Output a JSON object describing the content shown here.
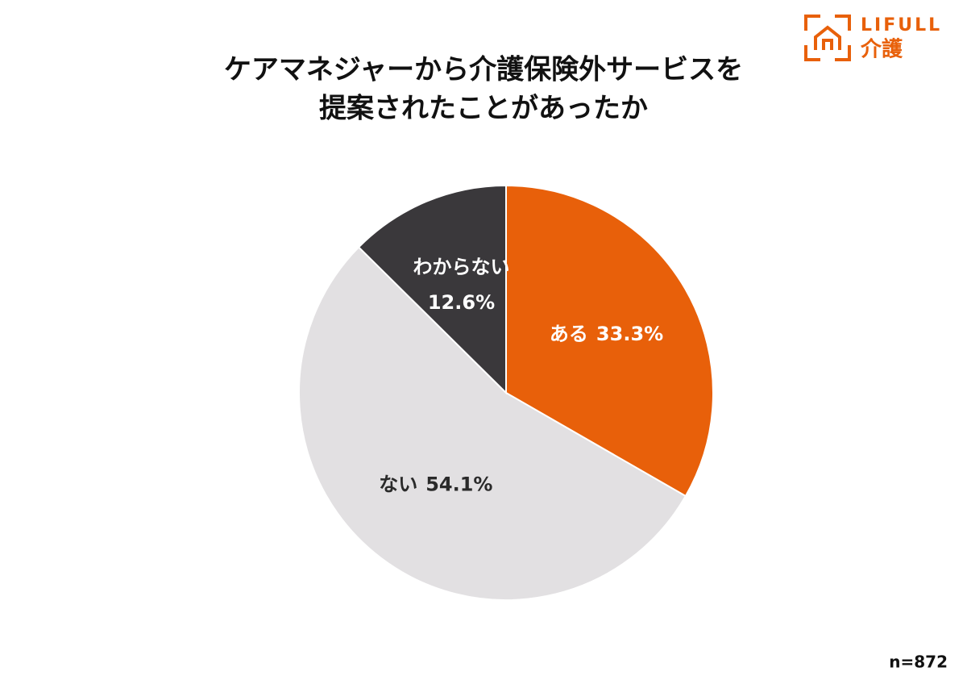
{
  "chart_data": {
    "type": "pie",
    "title_lines": [
      "ケアマネジャーから介護保険外サービスを",
      "提案されたことがあったか"
    ],
    "categories": [
      "ある",
      "ない",
      "わからない"
    ],
    "values": [
      33.3,
      54.1,
      12.6
    ],
    "value_labels": [
      "33.3%",
      "54.1%",
      "12.6%"
    ],
    "colors": [
      "#e8600a",
      "#e2e0e2",
      "#3a383b"
    ],
    "label_colors": [
      "#ffffff",
      "#2a2a2a",
      "#ffffff"
    ],
    "note": "n=872"
  },
  "logo": {
    "brand": "LIFULL",
    "service": "介護"
  }
}
